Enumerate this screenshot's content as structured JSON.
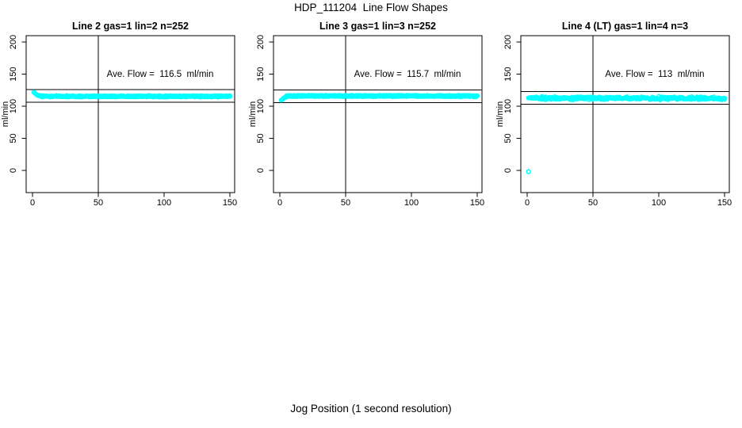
{
  "figure": {
    "title": "HDP_111204  Line Flow Shapes",
    "xlabel": "Jog Position (1 second resolution)",
    "background": "#FFFFFF",
    "line_color": "#000000"
  },
  "chart_data": [
    {
      "type": "scatter",
      "title": "Line 2 gas=1 lin=2 n=252",
      "line": 2,
      "gas": 1,
      "lin": 2,
      "n": 252,
      "annotation": "Ave. Flow =  116.5  ml/min",
      "ave_flow": 116.5,
      "ylabel": "ml/min",
      "x_ticks": [
        0,
        50,
        100,
        150
      ],
      "y_ticks": [
        0,
        50,
        100,
        150,
        200
      ],
      "xlim": [
        0,
        150
      ],
      "ylim": [
        -35,
        210
      ],
      "grid": false,
      "ref_hlines": [
        126,
        106
      ],
      "ref_vline": 50,
      "point_color": "#00FFFF",
      "profile_breakpoints": [
        [
          1,
          122
        ],
        [
          2,
          120
        ],
        [
          3,
          118.3
        ],
        [
          4,
          117
        ],
        [
          5,
          116.2
        ],
        [
          7,
          115.6
        ],
        [
          12,
          115.4
        ],
        [
          150,
          115.3
        ]
      ],
      "band_halfwidth": 1.5,
      "outliers": []
    },
    {
      "type": "scatter",
      "title": "Line 3 gas=1 lin=3 n=252",
      "line": 3,
      "gas": 1,
      "lin": 3,
      "n": 252,
      "annotation": "Ave. Flow =  115.7  ml/min",
      "ave_flow": 115.7,
      "ylabel": "ml/min",
      "x_ticks": [
        0,
        50,
        100,
        150
      ],
      "y_ticks": [
        0,
        50,
        100,
        150,
        200
      ],
      "xlim": [
        0,
        150
      ],
      "ylim": [
        -35,
        210
      ],
      "grid": false,
      "ref_hlines": [
        125.4,
        105.4
      ],
      "ref_vline": 50,
      "point_color": "#00FFFF",
      "profile_breakpoints": [
        [
          1,
          109.5
        ],
        [
          2,
          110.5
        ],
        [
          3,
          112.5
        ],
        [
          4,
          114.2
        ],
        [
          5,
          115.3
        ],
        [
          7,
          115.9
        ],
        [
          12,
          116
        ],
        [
          150,
          115.8
        ]
      ],
      "band_halfwidth": 1.5,
      "outliers": []
    },
    {
      "type": "scatter",
      "title": "Line 4 (LT) gas=1 lin=4 n=3",
      "line": 4,
      "gas": 1,
      "lin": 4,
      "n": 3,
      "annotation": "Ave. Flow =  113  ml/min",
      "ave_flow": 113,
      "ylabel": "ml/min",
      "x_ticks": [
        0,
        50,
        100,
        150
      ],
      "y_ticks": [
        0,
        50,
        100,
        150,
        200
      ],
      "xlim": [
        0,
        150
      ],
      "ylim": [
        -35,
        210
      ],
      "grid": false,
      "ref_hlines": [
        123,
        102.8
      ],
      "ref_vline": 50,
      "point_color": "#00FFFF",
      "profile_breakpoints": [
        [
          1,
          112.8
        ],
        [
          5,
          112.6
        ],
        [
          150,
          112.4
        ]
      ],
      "band_halfwidth": 2.8,
      "outliers": [
        [
          1,
          -2
        ]
      ]
    }
  ]
}
